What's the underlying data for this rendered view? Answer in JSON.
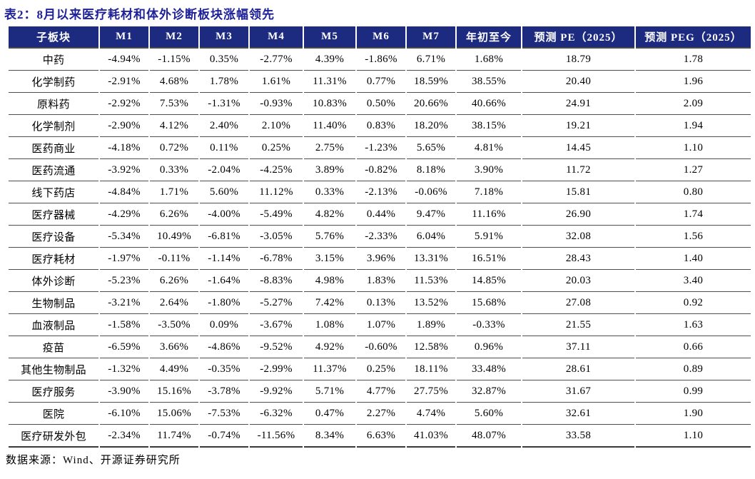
{
  "title": "表2：8月以来医疗耗材和体外诊断板块涨幅领先",
  "source_note": "数据来源：Wind、开源证券研究所",
  "colors": {
    "title_color": "#1f2299",
    "header_bg": "#1c2a80",
    "header_text": "#ffffff",
    "row_line": "#4f4f4f"
  },
  "table": {
    "columns": [
      "子板块",
      "M1",
      "M2",
      "M3",
      "M4",
      "M5",
      "M6",
      "M7",
      "年初至今",
      "预测 PE（2025）",
      "预测 PEG（2025）"
    ],
    "rows": [
      [
        "中药",
        "-4.94%",
        "-1.15%",
        "0.35%",
        "-2.77%",
        "4.39%",
        "-1.86%",
        "6.71%",
        "1.68%",
        "18.79",
        "1.78"
      ],
      [
        "化学制药",
        "-2.91%",
        "4.68%",
        "1.78%",
        "1.61%",
        "11.31%",
        "0.77%",
        "18.59%",
        "38.55%",
        "20.40",
        "1.96"
      ],
      [
        "原料药",
        "-2.92%",
        "7.53%",
        "-1.31%",
        "-0.93%",
        "10.83%",
        "0.50%",
        "20.66%",
        "40.66%",
        "24.91",
        "2.09"
      ],
      [
        "化学制剂",
        "-2.90%",
        "4.12%",
        "2.40%",
        "2.10%",
        "11.40%",
        "0.83%",
        "18.20%",
        "38.15%",
        "19.21",
        "1.94"
      ],
      [
        "医药商业",
        "-4.18%",
        "0.72%",
        "0.11%",
        "0.25%",
        "2.75%",
        "-1.23%",
        "5.65%",
        "4.81%",
        "14.45",
        "1.10"
      ],
      [
        "医药流通",
        "-3.92%",
        "0.33%",
        "-2.04%",
        "-4.25%",
        "3.89%",
        "-0.82%",
        "8.18%",
        "3.90%",
        "11.72",
        "1.27"
      ],
      [
        "线下药店",
        "-4.84%",
        "1.71%",
        "5.60%",
        "11.12%",
        "0.33%",
        "-2.13%",
        "-0.06%",
        "7.18%",
        "15.81",
        "0.80"
      ],
      [
        "医疗器械",
        "-4.29%",
        "6.26%",
        "-4.00%",
        "-5.49%",
        "4.82%",
        "0.44%",
        "9.47%",
        "11.16%",
        "26.90",
        "1.74"
      ],
      [
        "医疗设备",
        "-5.34%",
        "10.49%",
        "-6.81%",
        "-3.05%",
        "5.76%",
        "-2.33%",
        "6.04%",
        "5.91%",
        "32.08",
        "1.56"
      ],
      [
        "医疗耗材",
        "-1.97%",
        "-0.11%",
        "-1.14%",
        "-6.78%",
        "3.15%",
        "3.96%",
        "13.31%",
        "16.51%",
        "28.43",
        "1.40"
      ],
      [
        "体外诊断",
        "-5.23%",
        "6.26%",
        "-1.64%",
        "-8.83%",
        "4.98%",
        "1.83%",
        "11.53%",
        "14.85%",
        "20.03",
        "3.40"
      ],
      [
        "生物制品",
        "-3.21%",
        "2.64%",
        "-1.80%",
        "-5.27%",
        "7.42%",
        "0.13%",
        "13.52%",
        "15.68%",
        "27.08",
        "0.92"
      ],
      [
        "血液制品",
        "-1.58%",
        "-3.50%",
        "0.09%",
        "-3.67%",
        "1.08%",
        "1.07%",
        "1.89%",
        "-0.33%",
        "21.55",
        "1.63"
      ],
      [
        "疫苗",
        "-6.59%",
        "3.66%",
        "-4.86%",
        "-9.52%",
        "4.92%",
        "-0.60%",
        "12.58%",
        "0.96%",
        "37.11",
        "0.66"
      ],
      [
        "其他生物制品",
        "-1.32%",
        "4.49%",
        "-0.35%",
        "-2.99%",
        "11.37%",
        "0.25%",
        "18.11%",
        "33.48%",
        "28.61",
        "0.89"
      ],
      [
        "医疗服务",
        "-3.90%",
        "15.16%",
        "-3.78%",
        "-9.92%",
        "5.71%",
        "4.77%",
        "27.75%",
        "32.87%",
        "31.67",
        "0.99"
      ],
      [
        "医院",
        "-6.10%",
        "15.06%",
        "-7.53%",
        "-6.32%",
        "0.47%",
        "2.27%",
        "4.74%",
        "5.60%",
        "32.61",
        "1.90"
      ],
      [
        "医疗研发外包",
        "-2.34%",
        "11.74%",
        "-0.74%",
        "-11.56%",
        "8.34%",
        "6.63%",
        "41.03%",
        "48.07%",
        "33.58",
        "1.10"
      ]
    ]
  }
}
